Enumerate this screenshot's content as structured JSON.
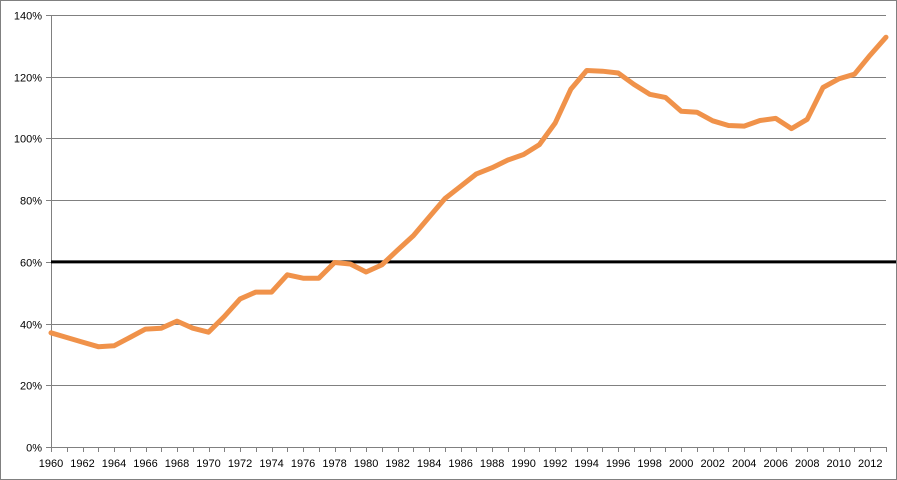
{
  "chart_data": {
    "type": "line",
    "title": "",
    "xlabel": "",
    "ylabel": "",
    "x": [
      1960,
      1961,
      1962,
      1963,
      1964,
      1965,
      1966,
      1967,
      1968,
      1969,
      1970,
      1971,
      1972,
      1973,
      1974,
      1975,
      1976,
      1977,
      1978,
      1979,
      1980,
      1981,
      1982,
      1983,
      1984,
      1985,
      1986,
      1987,
      1988,
      1989,
      1990,
      1991,
      1992,
      1993,
      1994,
      1995,
      1996,
      1997,
      1998,
      1999,
      2000,
      2001,
      2002,
      2003,
      2004,
      2005,
      2006,
      2007,
      2008,
      2009,
      2010,
      2011,
      2012,
      2013
    ],
    "series": [
      {
        "values": [
          37,
          35.5,
          34,
          32.5,
          32.8,
          35.5,
          38.2,
          38.5,
          40.8,
          38.5,
          37.2,
          42.3,
          48,
          50.2,
          50.2,
          55.8,
          54.7,
          54.7,
          59.8,
          59.3,
          56.7,
          59,
          63.8,
          68.5,
          74.5,
          80.5,
          84.5,
          88.5,
          90.5,
          93,
          94.8,
          98,
          105,
          116,
          122,
          121.8,
          121.2,
          117.5,
          114.3,
          113.3,
          108.8,
          108.5,
          105.7,
          104.2,
          104,
          105.8,
          106.5,
          103.2,
          106.2,
          116.5,
          119.3,
          120.8,
          127,
          132.8
        ],
        "color": "#f0924a"
      }
    ],
    "reference_line": {
      "y": 60,
      "color": "#000000"
    },
    "xlim": [
      1960,
      2013
    ],
    "ylim": [
      0,
      140
    ],
    "yticks": [
      0,
      20,
      40,
      60,
      80,
      100,
      120,
      140
    ],
    "ytick_labels": [
      "0%",
      "20%",
      "40%",
      "60%",
      "80%",
      "100%",
      "120%",
      "140%"
    ],
    "xticks": [
      1960,
      1962,
      1964,
      1966,
      1968,
      1970,
      1972,
      1974,
      1976,
      1978,
      1980,
      1982,
      1984,
      1986,
      1988,
      1990,
      1992,
      1994,
      1996,
      1998,
      2000,
      2002,
      2004,
      2006,
      2008,
      2010,
      2012
    ],
    "xtick_labels": [
      "1960",
      "1962",
      "1964",
      "1966",
      "1968",
      "1970",
      "1972",
      "1974",
      "1976",
      "1978",
      "1980",
      "1982",
      "1984",
      "1986",
      "1988",
      "1990",
      "1992",
      "1994",
      "1996",
      "1998",
      "2000",
      "2002",
      "2004",
      "2006",
      "2008",
      "2010",
      "2012"
    ],
    "grid": true,
    "grid_color": "#808080",
    "axis_color": "#808080",
    "legend": "none"
  }
}
